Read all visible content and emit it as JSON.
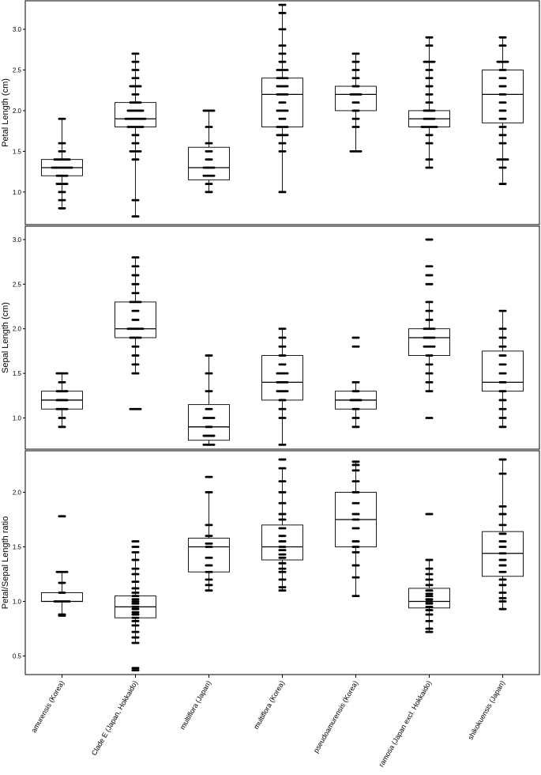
{
  "chart_data": [
    {
      "type": "boxplot",
      "ylabel": "Petal Length (cm)",
      "ylim": [
        0.6,
        3.35
      ],
      "yticks": [
        "1.0",
        "1.5",
        "2.0",
        "2.5",
        "3.0"
      ],
      "categories": [
        "amurensis (Korea)",
        "Clade E (Japan, Hokkaido)",
        "multiflora (Japan)",
        "multiflora (Korea)",
        "pseudoamurensis (Korea)",
        "ramosa (Japan excl. Hokkaido)",
        "shikokuensis (Japan)"
      ],
      "boxes": [
        {
          "q1": 1.2,
          "median": 1.3,
          "q3": 1.4,
          "min": 0.8,
          "max": 1.9
        },
        {
          "q1": 1.8,
          "median": 1.9,
          "q3": 2.1,
          "min": 0.7,
          "max": 2.7
        },
        {
          "q1": 1.15,
          "median": 1.3,
          "q3": 1.55,
          "min": 1.0,
          "max": 2.0
        },
        {
          "q1": 1.8,
          "median": 2.2,
          "q3": 2.4,
          "min": 1.0,
          "max": 3.3
        },
        {
          "q1": 2.0,
          "median": 2.2,
          "q3": 2.3,
          "min": 1.5,
          "max": 2.7
        },
        {
          "q1": 1.8,
          "median": 1.9,
          "q3": 2.0,
          "min": 1.3,
          "max": 2.9
        },
        {
          "q1": 1.85,
          "median": 2.2,
          "q3": 2.5,
          "min": 1.1,
          "max": 2.9
        }
      ],
      "points": [
        [
          0.8,
          0.9,
          1.0,
          1.1,
          1.1,
          1.2,
          1.2,
          1.3,
          1.3,
          1.3,
          1.3,
          1.4,
          1.4,
          1.4,
          1.5,
          1.6,
          1.9
        ],
        [
          0.7,
          0.9,
          1.4,
          1.5,
          1.5,
          1.6,
          1.7,
          1.8,
          1.8,
          1.8,
          1.9,
          1.9,
          1.9,
          1.9,
          2.0,
          2.0,
          2.0,
          2.1,
          2.1,
          2.2,
          2.3,
          2.3,
          2.4,
          2.5,
          2.6,
          2.7
        ],
        [
          1.0,
          1.1,
          1.2,
          1.2,
          1.3,
          1.3,
          1.4,
          1.5,
          1.6,
          1.8,
          2.0,
          2.0
        ],
        [
          1.0,
          1.5,
          1.6,
          1.7,
          1.7,
          1.8,
          1.8,
          1.9,
          2.0,
          2.0,
          2.1,
          2.2,
          2.2,
          2.3,
          2.3,
          2.4,
          2.4,
          2.5,
          2.5,
          2.6,
          2.7,
          2.8,
          3.0,
          3.2,
          3.3
        ],
        [
          1.5,
          1.5,
          1.8,
          1.9,
          2.0,
          2.1,
          2.2,
          2.2,
          2.3,
          2.4,
          2.5,
          2.6,
          2.7
        ],
        [
          1.3,
          1.4,
          1.6,
          1.7,
          1.8,
          1.8,
          1.8,
          1.9,
          1.9,
          2.0,
          2.0,
          2.1,
          2.2,
          2.3,
          2.4,
          2.5,
          2.6,
          2.6,
          2.8,
          2.9
        ],
        [
          1.1,
          1.3,
          1.4,
          1.4,
          1.6,
          1.7,
          1.8,
          1.9,
          2.0,
          2.1,
          2.2,
          2.3,
          2.4,
          2.5,
          2.6,
          2.6,
          2.8,
          2.9
        ]
      ]
    },
    {
      "type": "boxplot",
      "ylabel": "Sepal Length (cm)",
      "ylim": [
        0.65,
        3.15
      ],
      "yticks": [
        "1.0",
        "1.5",
        "2.0",
        "2.5",
        "3.0"
      ],
      "categories": [
        "amurensis (Korea)",
        "Clade E (Japan, Hokkaido)",
        "multiflora (Japan)",
        "multiflora (Korea)",
        "pseudoamurensis (Korea)",
        "ramosa (Japan excl. Hokkaido)",
        "shikokuensis (Japan)"
      ],
      "boxes": [
        {
          "q1": 1.1,
          "median": 1.2,
          "q3": 1.3,
          "min": 0.9,
          "max": 1.5
        },
        {
          "q1": 1.9,
          "median": 2.0,
          "q3": 2.3,
          "min": 1.5,
          "max": 2.8
        },
        {
          "q1": 0.75,
          "median": 0.9,
          "q3": 1.15,
          "min": 0.7,
          "max": 1.7
        },
        {
          "q1": 1.2,
          "median": 1.4,
          "q3": 1.7,
          "min": 0.7,
          "max": 2.0
        },
        {
          "q1": 1.1,
          "median": 1.2,
          "q3": 1.3,
          "min": 0.9,
          "max": 1.4
        },
        {
          "q1": 1.7,
          "median": 1.9,
          "q3": 2.0,
          "min": 1.3,
          "max": 2.3
        },
        {
          "q1": 1.3,
          "median": 1.4,
          "q3": 1.75,
          "min": 0.9,
          "max": 2.2
        }
      ],
      "points": [
        [
          0.9,
          1.0,
          1.1,
          1.1,
          1.2,
          1.2,
          1.3,
          1.3,
          1.4,
          1.5,
          1.5
        ],
        [
          1.1,
          1.1,
          1.5,
          1.6,
          1.7,
          1.8,
          1.9,
          1.9,
          2.0,
          2.0,
          2.0,
          2.1,
          2.2,
          2.3,
          2.3,
          2.4,
          2.5,
          2.6,
          2.7,
          2.8
        ],
        [
          0.7,
          0.7,
          0.8,
          0.8,
          0.9,
          1.0,
          1.0,
          1.1,
          1.3,
          1.5,
          1.7
        ],
        [
          0.7,
          1.0,
          1.1,
          1.2,
          1.3,
          1.3,
          1.4,
          1.4,
          1.5,
          1.5,
          1.6,
          1.7,
          1.8,
          1.9,
          2.0
        ],
        [
          0.9,
          1.0,
          1.1,
          1.2,
          1.2,
          1.3,
          1.4,
          1.8,
          1.9
        ],
        [
          1.0,
          1.3,
          1.4,
          1.5,
          1.6,
          1.7,
          1.8,
          1.8,
          1.9,
          1.9,
          2.0,
          2.0,
          2.1,
          2.2,
          2.3,
          2.5,
          2.6,
          2.7,
          3.0
        ],
        [
          0.9,
          1.0,
          1.1,
          1.2,
          1.3,
          1.4,
          1.5,
          1.6,
          1.7,
          1.8,
          1.9,
          2.0,
          2.2
        ]
      ]
    },
    {
      "type": "boxplot",
      "ylabel": "Petal/Sepal Length ratio",
      "ylim": [
        0.33,
        2.38
      ],
      "yticks": [
        "0.5",
        "1.0",
        "1.5",
        "2.0"
      ],
      "categories": [
        "amurensis (Korea)",
        "Clade E (Japan, Hokkaido)",
        "multiflora (Japan)",
        "multiflora (Korea)",
        "pseudoamurensis (Korea)",
        "ramosa (Japan excl. Hokkaido)",
        "shikokuensis (Japan)"
      ],
      "boxes": [
        {
          "q1": 1.0,
          "median": 1.0,
          "q3": 1.08,
          "min": 0.87,
          "max": 1.27
        },
        {
          "q1": 0.85,
          "median": 0.95,
          "q3": 1.05,
          "min": 0.62,
          "max": 1.45
        },
        {
          "q1": 1.27,
          "median": 1.5,
          "q3": 1.58,
          "min": 1.1,
          "max": 2.0
        },
        {
          "q1": 1.38,
          "median": 1.5,
          "q3": 1.7,
          "min": 1.1,
          "max": 2.22
        },
        {
          "q1": 1.5,
          "median": 1.75,
          "q3": 2.0,
          "min": 1.05,
          "max": 2.28
        },
        {
          "q1": 0.94,
          "median": 1.0,
          "q3": 1.12,
          "min": 0.72,
          "max": 1.38
        },
        {
          "q1": 1.23,
          "median": 1.44,
          "q3": 1.64,
          "min": 0.93,
          "max": 2.3
        }
      ],
      "points": [
        [
          0.87,
          0.88,
          1.0,
          1.0,
          1.0,
          1.08,
          1.17,
          1.27,
          1.27,
          1.78
        ],
        [
          0.37,
          0.39,
          0.62,
          0.67,
          0.72,
          0.78,
          0.82,
          0.85,
          0.88,
          0.9,
          0.93,
          0.95,
          0.98,
          1.0,
          1.02,
          1.05,
          1.08,
          1.12,
          1.18,
          1.25,
          1.3,
          1.38,
          1.45,
          1.5,
          1.55
        ],
        [
          1.1,
          1.15,
          1.2,
          1.27,
          1.33,
          1.4,
          1.5,
          1.53,
          1.6,
          1.7,
          2.0,
          2.14
        ],
        [
          1.1,
          1.13,
          1.2,
          1.27,
          1.3,
          1.35,
          1.4,
          1.43,
          1.47,
          1.5,
          1.55,
          1.6,
          1.67,
          1.75,
          1.8,
          1.9,
          2.0,
          2.1,
          2.22,
          2.3
        ],
        [
          1.05,
          1.22,
          1.33,
          1.45,
          1.5,
          1.55,
          1.67,
          1.75,
          1.8,
          1.9,
          2.0,
          2.1,
          2.2,
          2.25,
          2.28
        ],
        [
          0.72,
          0.75,
          0.82,
          0.88,
          0.92,
          0.95,
          0.98,
          1.0,
          1.02,
          1.05,
          1.07,
          1.1,
          1.15,
          1.2,
          1.25,
          1.3,
          1.38,
          1.8
        ],
        [
          0.93,
          1.0,
          1.03,
          1.08,
          1.15,
          1.2,
          1.27,
          1.33,
          1.38,
          1.44,
          1.5,
          1.55,
          1.62,
          1.7,
          1.8,
          1.87,
          2.17,
          2.3
        ]
      ]
    }
  ]
}
